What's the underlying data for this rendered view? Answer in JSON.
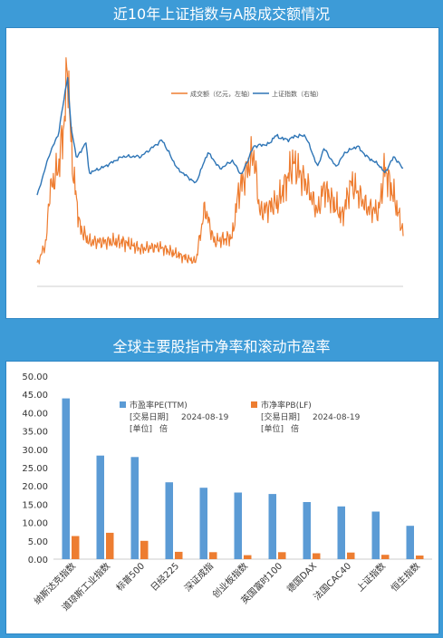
{
  "chart1": {
    "title": "近10年上证指数与A股成交额情况",
    "legend": [
      "成交额（亿元，左轴）",
      "上证指数（右轴）"
    ],
    "series_colors": [
      "#ee7d31",
      "#2e75b6"
    ]
  },
  "chart2": {
    "title": "全球主要股指市净率和滚动市盈率",
    "legend": [
      {
        "name": "市盈率PE(TTM)",
        "date_label": "[交易日期]",
        "date": "2024-08-19",
        "unit_label": "[单位]",
        "unit": "倍",
        "color": "#5b9bd5"
      },
      {
        "name": "市净率PB(LF)",
        "date_label": "[交易日期]",
        "date": "2024-08-19",
        "unit_label": "[单位]",
        "unit": "倍",
        "color": "#ed7d31"
      }
    ]
  },
  "chart_data": [
    {
      "type": "line",
      "title": "近10年上证指数与A股成交额情况",
      "x_range": [
        "2014-08-19",
        "2024-08-19"
      ],
      "series": [
        {
          "name": "成交额（亿元，左轴）",
          "axis": "left",
          "ylim": [
            0,
            25000
          ],
          "anchors": [
            [
              "2014-08",
              2200
            ],
            [
              "2014-11",
              4500
            ],
            [
              "2014-12",
              9500
            ],
            [
              "2015-03",
              12000
            ],
            [
              "2015-05",
              17000
            ],
            [
              "2015-06",
              23000
            ],
            [
              "2015-07",
              15000
            ],
            [
              "2015-08",
              11000
            ],
            [
              "2015-10",
              6000
            ],
            [
              "2016-01",
              4500
            ],
            [
              "2016-06",
              4500
            ],
            [
              "2016-12",
              4500
            ],
            [
              "2017-06",
              3800
            ],
            [
              "2017-12",
              4000
            ],
            [
              "2018-06",
              3200
            ],
            [
              "2018-12",
              2500
            ],
            [
              "2019-03",
              8000
            ],
            [
              "2019-06",
              4500
            ],
            [
              "2019-12",
              5000
            ],
            [
              "2020-02",
              9500
            ],
            [
              "2020-07",
              13500
            ],
            [
              "2020-09",
              7500
            ],
            [
              "2020-12",
              8000
            ],
            [
              "2021-03",
              8500
            ],
            [
              "2021-08",
              12500
            ],
            [
              "2021-12",
              10500
            ],
            [
              "2022-04",
              7500
            ],
            [
              "2022-06",
              10000
            ],
            [
              "2022-12",
              7000
            ],
            [
              "2023-03",
              10500
            ],
            [
              "2023-08",
              8000
            ],
            [
              "2023-12",
              7500
            ],
            [
              "2024-02",
              12000
            ],
            [
              "2024-05",
              9000
            ],
            [
              "2024-08",
              5500
            ]
          ]
        },
        {
          "name": "上证指数（右轴）",
          "axis": "right",
          "ylim": [
            0,
            6000
          ],
          "anchors": [
            [
              "2014-08",
              2200
            ],
            [
              "2014-12",
              3200
            ],
            [
              "2015-03",
              3700
            ],
            [
              "2015-06",
              5100
            ],
            [
              "2015-07",
              3900
            ],
            [
              "2015-09",
              3100
            ],
            [
              "2015-12",
              3500
            ],
            [
              "2016-01",
              2750
            ],
            [
              "2016-06",
              2900
            ],
            [
              "2016-12",
              3150
            ],
            [
              "2017-06",
              3150
            ],
            [
              "2018-01",
              3550
            ],
            [
              "2018-06",
              2850
            ],
            [
              "2018-12",
              2500
            ],
            [
              "2019-04",
              3250
            ],
            [
              "2019-08",
              2850
            ],
            [
              "2019-12",
              3050
            ],
            [
              "2020-03",
              2700
            ],
            [
              "2020-07",
              3400
            ],
            [
              "2020-12",
              3450
            ],
            [
              "2021-02",
              3650
            ],
            [
              "2021-06",
              3550
            ],
            [
              "2021-09",
              3650
            ],
            [
              "2021-12",
              3650
            ],
            [
              "2022-04",
              2900
            ],
            [
              "2022-06",
              3350
            ],
            [
              "2022-10",
              2900
            ],
            [
              "2023-01",
              3250
            ],
            [
              "2023-05",
              3400
            ],
            [
              "2023-08",
              3150
            ],
            [
              "2023-12",
              2950
            ],
            [
              "2024-02",
              2750
            ],
            [
              "2024-05",
              3150
            ],
            [
              "2024-07",
              2950
            ],
            [
              "2024-08",
              2850
            ]
          ]
        }
      ]
    },
    {
      "type": "bar",
      "title": "全球主要股指市净率和滚动市盈率",
      "categories": [
        "纳斯达克指数",
        "道琼斯工业指数",
        "标普500",
        "日经225",
        "深证成指",
        "创业板指数",
        "英国富时100",
        "德国DAX",
        "法国CAC40",
        "上证指数",
        "恒生指数"
      ],
      "series": [
        {
          "name": "市盈率PE(TTM)",
          "values": [
            43.9,
            28.3,
            27.9,
            21.0,
            19.5,
            18.2,
            17.8,
            15.6,
            14.4,
            13.0,
            9.1
          ]
        },
        {
          "name": "市净率PB(LF)",
          "values": [
            6.3,
            7.2,
            5.0,
            2.0,
            1.9,
            1.1,
            1.9,
            1.6,
            1.8,
            1.2,
            1.0
          ]
        }
      ],
      "ylim": [
        0,
        50
      ],
      "yticks": [
        "0.00",
        "5.00",
        "10.00",
        "15.00",
        "20.00",
        "25.00",
        "30.00",
        "35.00",
        "40.00",
        "45.00",
        "50.00"
      ]
    }
  ]
}
